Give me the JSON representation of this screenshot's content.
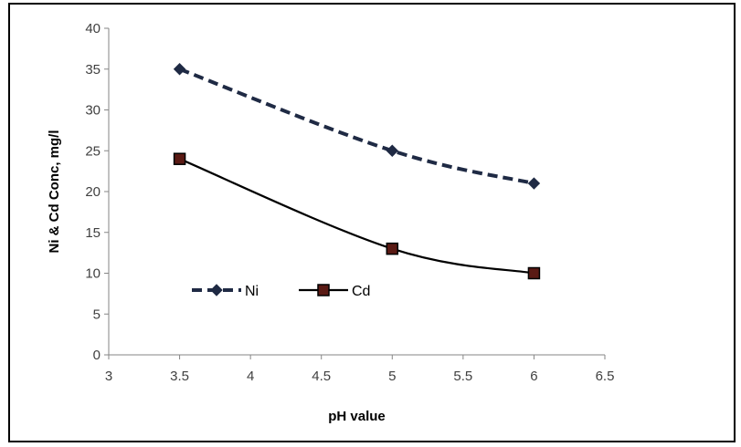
{
  "chart_data": {
    "type": "line",
    "title": "",
    "xlabel": "pH value",
    "ylabel": "Ni & Cd Conc, mg/l",
    "xlim": [
      3,
      6.5
    ],
    "ylim": [
      0,
      40
    ],
    "xticks": [
      "3",
      "3.5",
      "4",
      "4.5",
      "5",
      "5.5",
      "6",
      "6.5"
    ],
    "yticks": [
      "0",
      "5",
      "10",
      "15",
      "20",
      "25",
      "30",
      "35",
      "40"
    ],
    "x": [
      3.5,
      5,
      6
    ],
    "grid": false,
    "legend_position": "inside-lower-left",
    "series": [
      {
        "name": "Ni",
        "values": [
          35,
          25,
          21
        ],
        "marker": "diamond",
        "line": "dashed",
        "color": "#1f2a44"
      },
      {
        "name": "Cd",
        "values": [
          24,
          13,
          10
        ],
        "marker": "square",
        "line": "solid",
        "color": "#000000",
        "marker_fill": "#5a1a14"
      }
    ]
  }
}
